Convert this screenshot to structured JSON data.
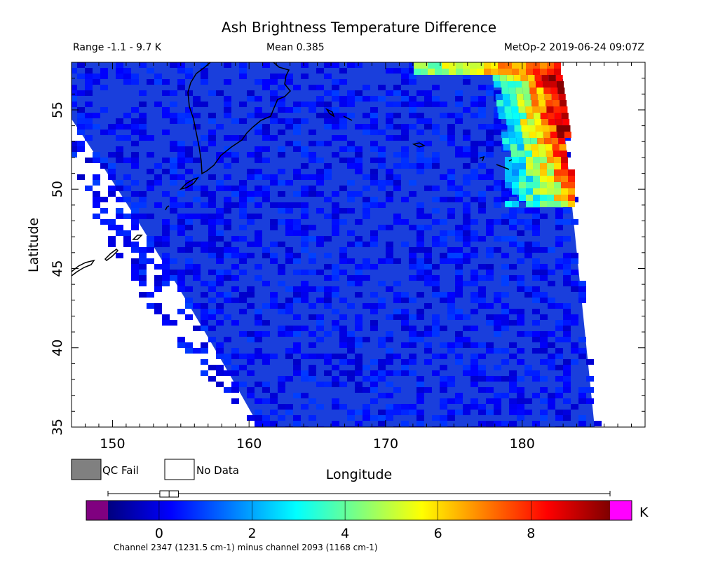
{
  "chart_data": {
    "type": "heatmap",
    "title": "Ash Brightness Temperature Difference",
    "subtitle": {
      "range": "Range -1.1 - 9.7 K",
      "mean": "Mean 0.385",
      "satellite_time": "MetOp-2 2019-06-24 09:07Z"
    },
    "xlabel": "Longitude",
    "ylabel": "Latitude",
    "xlim": [
      147,
      189
    ],
    "ylim": [
      35,
      58
    ],
    "xticks": [
      150,
      160,
      170,
      180
    ],
    "xtick_labels": [
      "150",
      "160",
      "170",
      "180"
    ],
    "yticks": [
      35,
      40,
      45,
      50,
      55
    ],
    "ytick_labels": [
      "35",
      "40",
      "45",
      "50",
      "55"
    ],
    "legend": [
      {
        "label": "QC Fail",
        "color": "#808080"
      },
      {
        "label": "No Data",
        "color": "#ffffff"
      }
    ],
    "colorbar": {
      "unit": "K",
      "vmin": -1.1,
      "vmax": 9.7,
      "ticks": [
        0,
        2,
        4,
        6,
        8
      ],
      "tick_labels": [
        "0",
        "2",
        "4",
        "6",
        "8"
      ],
      "under_color": "#800080",
      "over_color": "#ff00ff",
      "colors": [
        "#00007f",
        "#0000ff",
        "#007fff",
        "#00ffff",
        "#7fff7f",
        "#ffff00",
        "#ff7f00",
        "#ff0000",
        "#7f0000"
      ],
      "boxplot": {
        "min": -1.1,
        "q1": 0.0,
        "median": 0.2,
        "q3": 0.4,
        "max": 9.7
      }
    },
    "ash_feature": {
      "approx_lon_range": [
        174,
        183
      ],
      "approx_lat_range": [
        49,
        58
      ],
      "max_value_K": 9.7
    },
    "background_value_K": 0.3,
    "note": "Channel 2347 (1231.5 cm-1) minus channel 2093 (1168 cm-1)"
  }
}
